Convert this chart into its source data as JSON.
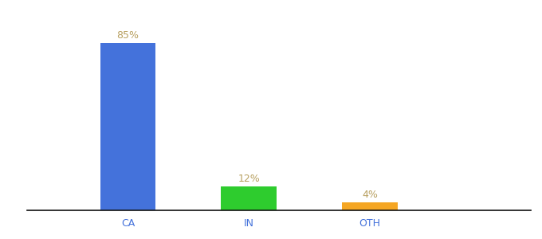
{
  "categories": [
    "CA",
    "IN",
    "OTH"
  ],
  "values": [
    85,
    12,
    4
  ],
  "bar_colors": [
    "#4472db",
    "#2ecc2e",
    "#f5a623"
  ],
  "label_color": "#b8a060",
  "label_fontsize": 9,
  "tick_color": "#4472db",
  "tick_fontsize": 9,
  "background_color": "#ffffff",
  "ylim": [
    0,
    97
  ],
  "bar_width": 0.55,
  "x_positions": [
    1.0,
    2.2,
    3.4
  ],
  "xlim": [
    0.0,
    5.0
  ]
}
